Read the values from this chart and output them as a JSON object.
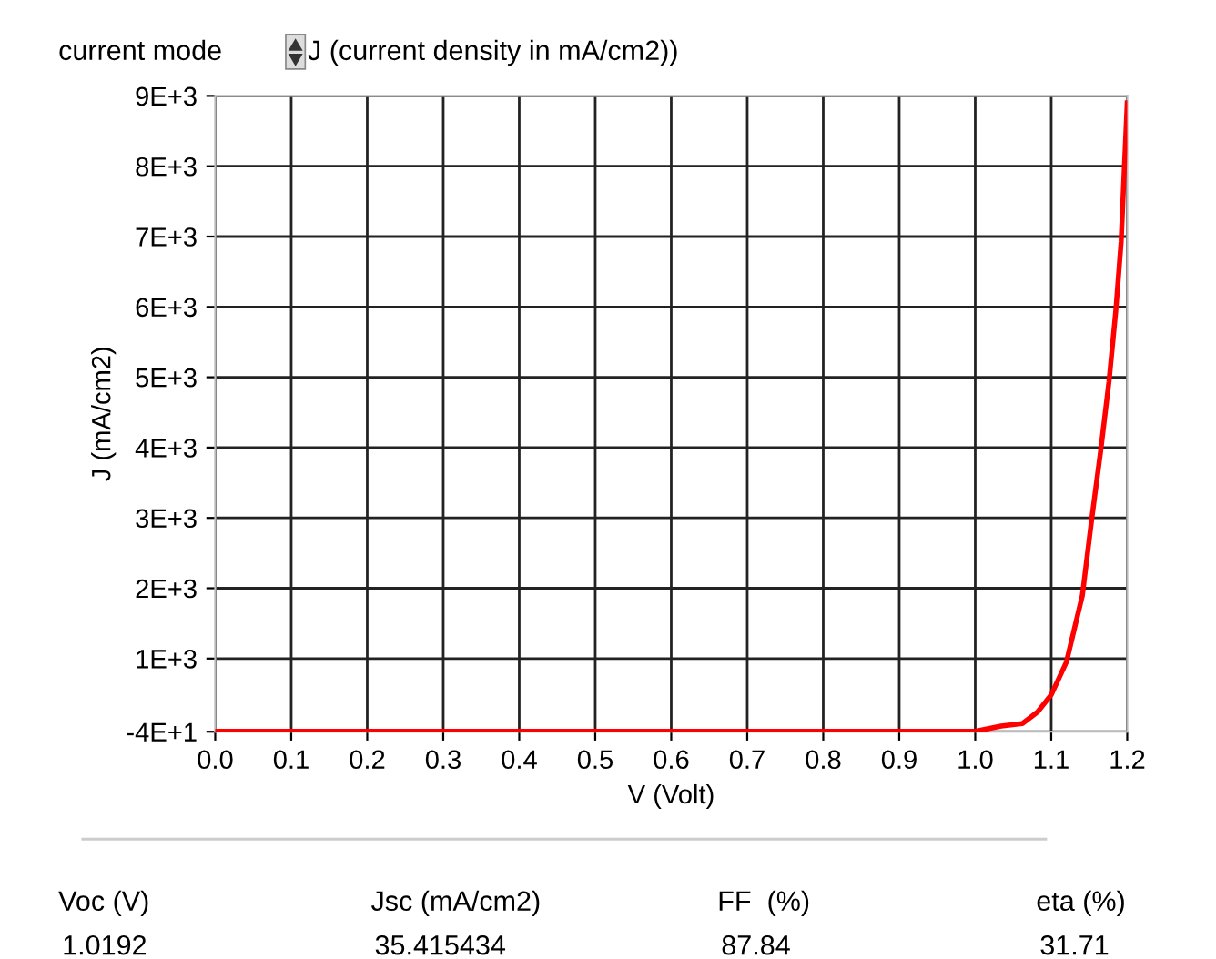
{
  "chart_data": {
    "type": "line",
    "title": "J (current density in mA/cm2))",
    "xlabel": "V (Volt)",
    "ylabel": "J (mA/cm2)",
    "annotations": [
      "current mode",
      "Voc (V)",
      "Jsc (mA/cm2)",
      "FF  (%)",
      "eta (%)",
      "1.0192",
      "35.415434",
      "87.84",
      "31.71"
    ],
    "x": [
      0.0,
      0.2,
      0.4,
      0.6,
      0.8,
      1.0,
      1.034,
      1.062,
      1.082,
      1.1,
      1.12,
      1.141,
      1.153,
      1.165,
      1.176,
      1.185,
      1.192,
      1.196,
      1.2
    ],
    "series": [
      {
        "color": "#ff0000",
        "values": [
          -35,
          -35,
          -35,
          -35,
          -35,
          -35,
          40,
          76,
          240,
          485,
          950,
          1900,
          2960,
          3950,
          4940,
          5950,
          6930,
          7930,
          8900
        ]
      }
    ],
    "xlim": [
      0,
      1.2
    ],
    "xticks": [
      {
        "value": 0,
        "label": "0.0"
      },
      {
        "value": 0.1,
        "label": "0.1"
      },
      {
        "value": 0.2,
        "label": "0.2"
      },
      {
        "value": 0.3,
        "label": "0.3"
      },
      {
        "value": 0.4,
        "label": "0.4"
      },
      {
        "value": 0.5,
        "label": "0.5"
      },
      {
        "value": 0.6,
        "label": "0.6"
      },
      {
        "value": 0.7,
        "label": "0.7"
      },
      {
        "value": 0.8,
        "label": "0.8"
      },
      {
        "value": 0.9,
        "label": "0.9"
      },
      {
        "value": 1.0,
        "label": "1.0"
      },
      {
        "value": 1.1,
        "label": "1.1"
      },
      {
        "value": 1.2,
        "label": "1.2"
      }
    ],
    "ylim": [
      -40,
      9000
    ],
    "yticks": [
      {
        "value": -40,
        "label": "-4E+1"
      },
      {
        "value": 1000,
        "label": "1E+3"
      },
      {
        "value": 2000,
        "label": "2E+3"
      },
      {
        "value": 3000,
        "label": "3E+3"
      },
      {
        "value": 4000,
        "label": "4E+3"
      },
      {
        "value": 5000,
        "label": "5E+3"
      },
      {
        "value": 6000,
        "label": "6E+3"
      },
      {
        "value": 7000,
        "label": "7E+3"
      },
      {
        "value": 8000,
        "label": "8E+3"
      },
      {
        "value": 9000,
        "label": "9E+3"
      }
    ],
    "grid": true,
    "marker": "none",
    "line_style": "solid"
  }
}
